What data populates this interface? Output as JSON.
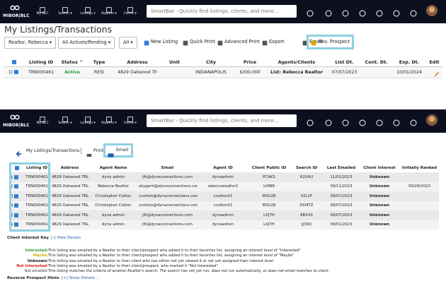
{
  "nav": {
    "logo": "MIBOR|BLC",
    "items": [
      "My BLC",
      "Search ▾",
      "Listings ▾",
      "Reports ▾",
      "Forms ▾"
    ],
    "smartbar": "SmartBar - Quickly find listings, clients, and more..."
  },
  "top": {
    "title": "My Listings/Transactions",
    "filters": [
      "Realtor, Rebecca ▾",
      "All Actives/Pending ▾",
      "All ▾"
    ],
    "actions": [
      "New Listing",
      "Quick Print",
      "Advanced Print",
      "Export",
      "Email",
      "Rev. Prospect"
    ],
    "table": {
      "columns": [
        null,
        "Listing ID",
        "Status ^",
        "Type",
        "Address",
        "Unit",
        "City",
        "Price",
        "Agents/Clients",
        "List Dt.",
        "Cont. Dt.",
        "Exp. Dt.",
        "Edit"
      ],
      "rows": [
        [
          "1)",
          "TRN000461",
          "Active",
          "RESI",
          "4829 Oakwood Trl",
          null,
          "INDIANAPOLIS",
          "$300,000",
          "List: Rebecca Realtor",
          "07/07/2023",
          null,
          "10/01/2024",
          null
        ]
      ]
    }
  },
  "bottom": {
    "breadcrumb": "My Listings/Transactions",
    "actions": [
      "Print",
      "Email"
    ],
    "table": {
      "columns": [
        null,
        "Listing ID",
        "Address",
        "Agent Name",
        "Email",
        "Agent ID",
        "Client Public ID",
        "Search ID",
        "Last Emailed",
        "Client Interest",
        "Initially Ranked"
      ],
      "rows": [
        [
          "1",
          "TRN000461",
          "4829 Oakwood TRL",
          "dyna admin",
          "jfk@dynaconnections.com",
          "dynaadmin",
          "PCAKS",
          "62XAU",
          "11/01/2023",
          "Unknown",
          null
        ],
        [
          "2",
          "TRN000461",
          "4829 Oakwood TRL",
          "Rebecca Realtor",
          "akygerti@dynaconnections.com",
          "rebeccarealtor2",
          "LHIB8",
          null,
          "09/11/2023",
          "Unknown",
          "09/29/2023"
        ],
        [
          "3",
          "TRN000461",
          "4829 Oakwood TRL",
          "Christopher Cotton",
          "ccotton@dynaconnections.com",
          "ccotton01",
          "M3U28",
          "42L1F",
          "09/07/2023",
          "Unknown",
          null
        ],
        [
          "4",
          "TRN000461",
          "4829 Oakwood TRL",
          "Christopher Cotton",
          "ccotton@dynaconnections.com",
          "ccotton01",
          "M3U28",
          "DO4TZ",
          "09/07/2023",
          "Unknown",
          null
        ],
        [
          "5",
          "TRN000461",
          "4829 Oakwood TRL",
          "dyna admin",
          "jfk@dynaconnections.com",
          "dynaadmin",
          "LXJTH",
          "8RX43",
          "09/07/2023",
          "Unknown",
          null
        ],
        [
          "6",
          "TRN000461",
          "4829 Oakwood TRL",
          "dyna admin",
          "jfk@dynaconnections.com",
          "dynaadmin",
          "LXJTH",
          "JJ39Q",
          "09/01/2023",
          "Unknown",
          null
        ]
      ]
    }
  },
  "key": {
    "title": "Client Interest Key",
    "toggle": "[-] Hide Details",
    "items": [
      {
        "label": "Interested:",
        "text": "This listing was emailed by a Realtor to their client/prospect who added it to their favorites list, assigning an interest level of \"Interested\""
      },
      {
        "label": "Maybe:",
        "text": "This listing was emailed by a Realtor to their client/prospect who added it to their favorites list, assigning an interest level of \"Maybe\""
      },
      {
        "label": "Unknown:",
        "text": "This listing was emailed by a Realtor to their client who has either not yet viewed it or not yet assigned their interest level"
      },
      {
        "label": "Not Interested:",
        "text": "This listing was emailed by a Realtor to their client/prospect, who marked it \"Not Interested\""
      },
      {
        "label": "Not emailed:",
        "text": "This listing matches the criteria of another Realtor's search. The search has not yet run, does not run automatically, or does not email matches to client."
      }
    ]
  },
  "hints": {
    "title": "Reverse Prospect Hints",
    "toggle": "[+] Show Details..."
  }
}
